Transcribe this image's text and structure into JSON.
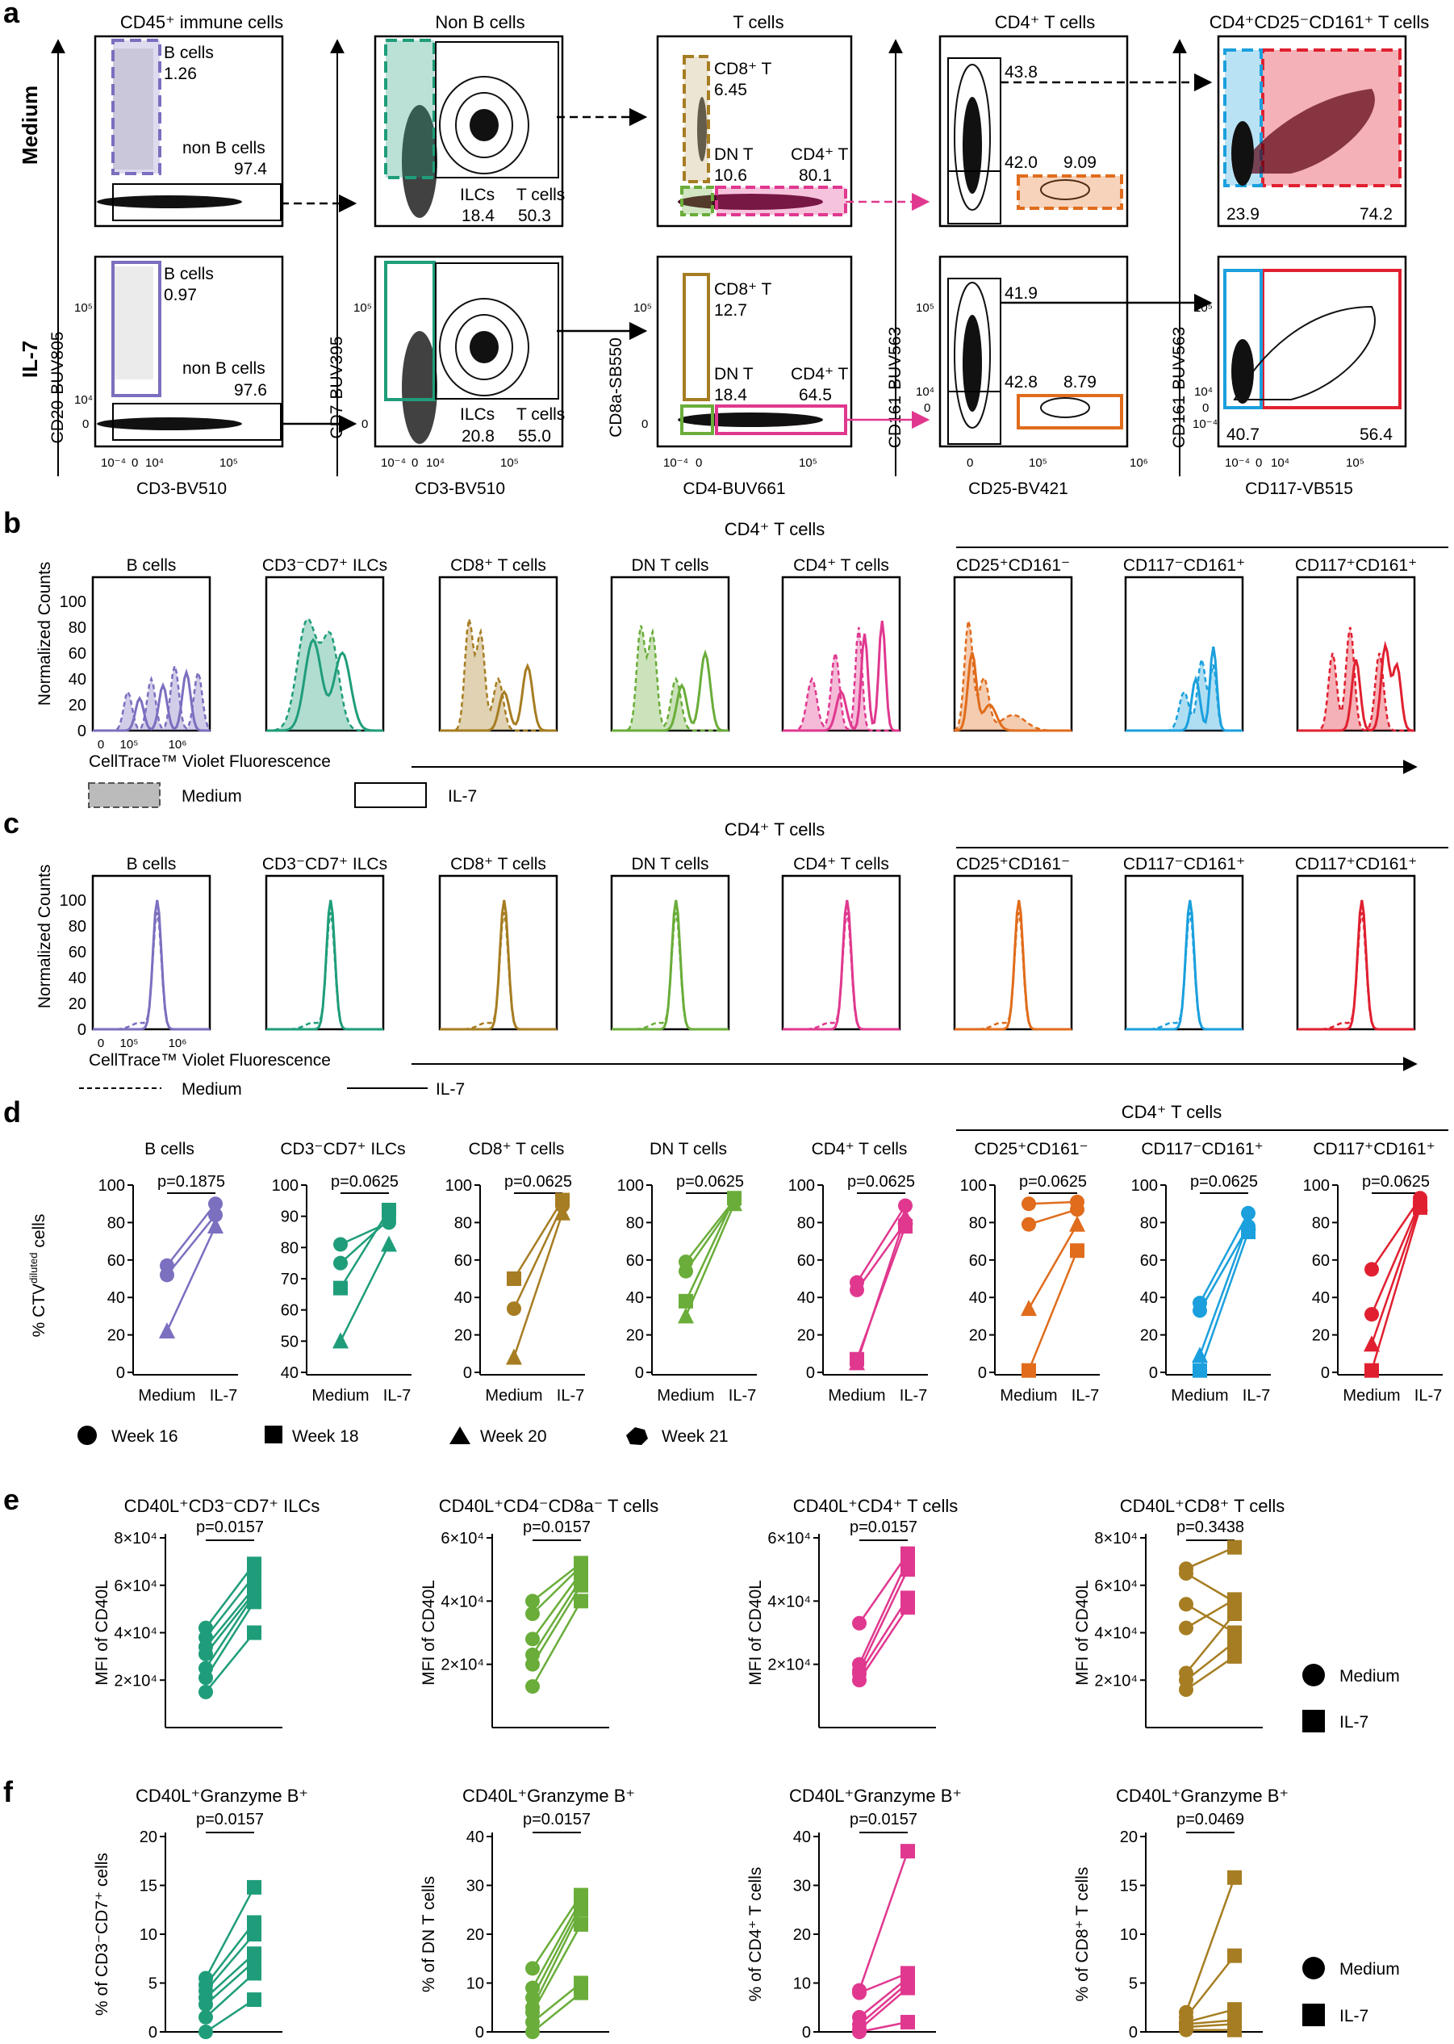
{
  "colors": {
    "bcell": "#7b6fbf",
    "ilc": "#1f9d7a",
    "cd8": "#a67d22",
    "dn": "#6aad3a",
    "cd4": "#e0388f",
    "cd25": "#e06c1c",
    "cd117neg": "#1ba0dd",
    "cd117pos": "#e02030"
  },
  "panel_letters": [
    "a",
    "b",
    "c",
    "d",
    "e",
    "f"
  ],
  "a": {
    "row_labels": [
      "Medium",
      "IL-7"
    ],
    "titles": [
      "CD45⁺ immune cells",
      "Non B cells",
      "T cells",
      "CD4⁺ T cells",
      "CD4⁺CD25⁻CD161⁺ T cells"
    ],
    "x_labels": [
      "CD3-BV510",
      "CD3-BV510",
      "CD4-BUV661",
      "CD25-BV421",
      "CD117-VB515"
    ],
    "y_labels": [
      "CD20-BUV805",
      "CD7-BUV395",
      "CD8a-SB550",
      "CD161-BUV563",
      "CD161-BUV563"
    ],
    "tick_neg": "10⁻⁴",
    "tick_zero": "0",
    "tick_4": "10⁴",
    "tick_5": "10⁵",
    "tick_6": "10⁶",
    "medium": {
      "b_cells": "B cells",
      "b_val": "1.26",
      "nonb": "non B cells",
      "nonb_val": "97.4",
      "ilc": "ILCs",
      "ilc_val": "18.4",
      "t": "T cells",
      "t_val": "50.3",
      "cd8": "CD8⁺ T",
      "cd8_val": "6.45",
      "dn": "DN T",
      "dn_val": "10.6",
      "cd4": "CD4⁺ T",
      "cd4_val": "80.1",
      "q_top": "43.8",
      "q_bl": "42.0",
      "q_br": "9.09",
      "f_left": "23.9",
      "f_right": "74.2"
    },
    "il7": {
      "b_cells": "B cells",
      "b_val": "0.97",
      "nonb": "non B cells",
      "nonb_val": "97.6",
      "ilc": "ILCs",
      "ilc_val": "20.8",
      "t": "T cells",
      "t_val": "55.0",
      "cd8": "CD8⁺ T",
      "cd8_val": "12.7",
      "dn": "DN T",
      "dn_val": "18.4",
      "cd4": "CD4⁺ T",
      "cd4_val": "64.5",
      "q_top": "41.9",
      "q_bl": "42.8",
      "q_br": "8.79",
      "f_left": "40.7",
      "f_right": "56.4"
    }
  },
  "b": {
    "ylabel": "Normalized Counts",
    "xlabel": "CellTrace™ Violet Fluorescence",
    "group_label": "CD4⁺ T cells",
    "legend": [
      "Medium",
      "IL-7"
    ],
    "titles": [
      "B cells",
      "CD3⁻CD7⁺ ILCs",
      "CD8⁺ T cells",
      "DN T cells",
      "CD4⁺ T cells",
      "CD25⁺CD161⁻",
      "CD117⁻CD161⁺",
      "CD117⁺CD161⁺"
    ],
    "yticks": [
      "0",
      "20",
      "40",
      "60",
      "80",
      "100"
    ],
    "xticks": [
      "0",
      "10⁵",
      "10⁶"
    ]
  },
  "c": {
    "ylabel": "Normalized Counts",
    "xlabel": "CellTrace™ Violet Fluorescence",
    "group_label": "CD4⁺ T cells",
    "legend": [
      "Medium",
      "IL-7"
    ],
    "titles": [
      "B cells",
      "CD3⁻CD7⁺ ILCs",
      "CD8⁺ T cells",
      "DN T cells",
      "CD4⁺ T cells",
      "CD25⁺CD161⁻",
      "CD117⁻CD161⁺",
      "CD117⁺CD161⁺"
    ],
    "yticks": [
      "0",
      "20",
      "40",
      "60",
      "80",
      "100"
    ],
    "xticks": [
      "0",
      "10⁵",
      "10⁶"
    ]
  },
  "d": {
    "ylabel": "% CTV",
    "ylabel_sup": "diluted",
    "ylabel_end": " cells",
    "group_label": "CD4⁺ T cells",
    "xcats": [
      "Medium",
      "IL-7"
    ],
    "legend": [
      "Week 16",
      "Week 18",
      "Week 20",
      "Week 21"
    ],
    "subplots": [
      {
        "title": "B cells",
        "p": "p=0.1875",
        "ymin": 0,
        "ymax": 100,
        "yticks": [
          0,
          20,
          40,
          60,
          80,
          100
        ],
        "pairs": [
          [
            57,
            90,
            "circle"
          ],
          [
            52,
            84,
            "circle"
          ],
          [
            22,
            78,
            "triangle"
          ]
        ]
      },
      {
        "title": "CD3⁻CD7⁺ ILCs",
        "p": "p=0.0625",
        "ymin": 40,
        "ymax": 100,
        "yticks": [
          40,
          50,
          60,
          70,
          80,
          90,
          100
        ],
        "pairs": [
          [
            81,
            88,
            "circle"
          ],
          [
            75,
            89,
            "circle"
          ],
          [
            67,
            92,
            "square"
          ],
          [
            50,
            81,
            "triangle"
          ]
        ]
      },
      {
        "title": "CD8⁺ T cells",
        "p": "p=0.0625",
        "ymin": 0,
        "ymax": 100,
        "yticks": [
          0,
          20,
          40,
          60,
          80,
          100
        ],
        "pairs": [
          [
            50,
            92,
            "square"
          ],
          [
            34,
            89,
            "circle"
          ],
          [
            8,
            85,
            "triangle"
          ]
        ]
      },
      {
        "title": "DN T cells",
        "p": "p=0.0625",
        "ymin": 0,
        "ymax": 100,
        "yticks": [
          0,
          20,
          40,
          60,
          80,
          100
        ],
        "pairs": [
          [
            59,
            92,
            "circle"
          ],
          [
            54,
            91,
            "circle"
          ],
          [
            38,
            93,
            "square"
          ],
          [
            30,
            90,
            "triangle"
          ]
        ]
      },
      {
        "title": "CD4⁺ T cells",
        "p": "p=0.0625",
        "ymin": 0,
        "ymax": 100,
        "yticks": [
          0,
          20,
          40,
          60,
          80,
          100
        ],
        "pairs": [
          [
            48,
            89,
            "circle"
          ],
          [
            44,
            80,
            "circle"
          ],
          [
            7,
            78,
            "square"
          ],
          [
            5,
            83,
            "triangle"
          ]
        ]
      },
      {
        "title": "CD25⁺CD161⁻",
        "p": "p=0.0625",
        "ymin": 0,
        "ymax": 100,
        "yticks": [
          0,
          20,
          40,
          60,
          80,
          100
        ],
        "pairs": [
          [
            90,
            91,
            "circle"
          ],
          [
            79,
            87,
            "circle"
          ],
          [
            34,
            79,
            "triangle"
          ],
          [
            1,
            65,
            "square"
          ]
        ]
      },
      {
        "title": "CD117⁻CD161⁺",
        "p": "p=0.0625",
        "ymin": 0,
        "ymax": 100,
        "yticks": [
          0,
          20,
          40,
          60,
          80,
          100
        ],
        "pairs": [
          [
            37,
            85,
            "circle"
          ],
          [
            33,
            78,
            "circle"
          ],
          [
            9,
            80,
            "triangle"
          ],
          [
            1,
            75,
            "square"
          ]
        ]
      },
      {
        "title": "CD117⁺CD161⁺",
        "p": "p=0.0625",
        "ymin": 0,
        "ymax": 100,
        "yticks": [
          0,
          20,
          40,
          60,
          80,
          100
        ],
        "pairs": [
          [
            55,
            93,
            "circle"
          ],
          [
            31,
            91,
            "circle"
          ],
          [
            15,
            90,
            "triangle"
          ],
          [
            1,
            88,
            "square"
          ]
        ]
      }
    ]
  },
  "e": {
    "ylabel": "MFI of CD40L",
    "legend": [
      "Medium",
      "IL-7"
    ],
    "subplots": [
      {
        "title": "CD40L⁺CD3⁻CD7⁺ ILCs",
        "p": "p=0.0157",
        "ymax": 80000,
        "ticks": [
          "2×10⁴",
          "4×10⁴",
          "6×10⁴",
          "8×10⁴"
        ],
        "tickvals": [
          20000,
          40000,
          60000,
          80000
        ],
        "pairs": [
          [
            42000,
            69000
          ],
          [
            38000,
            64000
          ],
          [
            34000,
            59000
          ],
          [
            31000,
            57000
          ],
          [
            25000,
            56000
          ],
          [
            21000,
            53000
          ],
          [
            15000,
            40000
          ]
        ]
      },
      {
        "title": "CD40L⁺CD4⁻CD8a⁻ T cells",
        "p": "p=0.0157",
        "ymax": 60000,
        "ticks": [
          "2×10⁴",
          "4×10⁴",
          "6×10⁴"
        ],
        "tickvals": [
          20000,
          40000,
          60000
        ],
        "pairs": [
          [
            40000,
            52000
          ],
          [
            36000,
            51000
          ],
          [
            28000,
            49000
          ],
          [
            23000,
            47000
          ],
          [
            20000,
            45000
          ],
          [
            13000,
            40000
          ]
        ]
      },
      {
        "title": "CD40L⁺CD4⁺ T cells",
        "p": "p=0.0157",
        "ymax": 60000,
        "ticks": [
          "2×10⁴",
          "4×10⁴",
          "6×10⁴"
        ],
        "tickvals": [
          20000,
          40000,
          60000
        ],
        "pairs": [
          [
            33000,
            55000
          ],
          [
            20000,
            53000
          ],
          [
            18000,
            50000
          ],
          [
            17000,
            41000
          ],
          [
            15000,
            38000
          ]
        ]
      },
      {
        "title": "CD40L⁺CD8⁺ T cells",
        "p": "p=0.3438",
        "ymax": 80000,
        "ticks": [
          "2×10⁴",
          "4×10⁴",
          "6×10⁴",
          "8×10⁴"
        ],
        "tickvals": [
          20000,
          40000,
          60000,
          80000
        ],
        "pairs": [
          [
            67000,
            76000
          ],
          [
            65000,
            53000
          ],
          [
            52000,
            40000
          ],
          [
            42000,
            54000
          ],
          [
            23000,
            48000
          ],
          [
            20000,
            36000
          ],
          [
            16000,
            30000
          ]
        ]
      }
    ]
  },
  "f": {
    "legend": [
      "Medium",
      "IL-7"
    ],
    "subplots": [
      {
        "title": "CD40L⁺Granzyme B⁺",
        "p": "p=0.0157",
        "ylabel": "% of CD3⁻CD7⁺ cells",
        "ymax": 20,
        "yticks": [
          0,
          5,
          10,
          15,
          20
        ],
        "pairs": [
          [
            5.5,
            14.8
          ],
          [
            4.8,
            11.2
          ],
          [
            4.2,
            10.0
          ],
          [
            3.5,
            8.0
          ],
          [
            2.8,
            7.2
          ],
          [
            1.5,
            6.0
          ],
          [
            0.0,
            3.3
          ]
        ]
      },
      {
        "title": "CD40L⁺Granzyme B⁺",
        "p": "p=0.0157",
        "ylabel": "% of DN T cells",
        "ymax": 40,
        "yticks": [
          0,
          10,
          20,
          30,
          40
        ],
        "pairs": [
          [
            13,
            28
          ],
          [
            9,
            27
          ],
          [
            7,
            26
          ],
          [
            5,
            25
          ],
          [
            4,
            22
          ],
          [
            2,
            10
          ],
          [
            0,
            8
          ]
        ]
      },
      {
        "title": "CD40L⁺Granzyme B⁺",
        "p": "p=0.0157",
        "ylabel": "% of CD4⁺ T cells",
        "ymax": 40,
        "yticks": [
          0,
          10,
          20,
          30,
          40
        ],
        "pairs": [
          [
            8.5,
            37
          ],
          [
            8,
            12
          ],
          [
            3,
            11
          ],
          [
            1.5,
            10
          ],
          [
            0.5,
            9
          ],
          [
            0,
            2
          ]
        ]
      },
      {
        "title": "CD40L⁺Granzyme B⁺",
        "p": "p=0.0469",
        "ylabel": "% of CD8⁺ T cells",
        "ymax": 20,
        "yticks": [
          0,
          5,
          10,
          15,
          20
        ],
        "pairs": [
          [
            2,
            15.8
          ],
          [
            1.5,
            7.8
          ],
          [
            1,
            2.3
          ],
          [
            0.8,
            1.2
          ],
          [
            0.5,
            0.8
          ],
          [
            0.2,
            0.2
          ]
        ]
      }
    ]
  }
}
